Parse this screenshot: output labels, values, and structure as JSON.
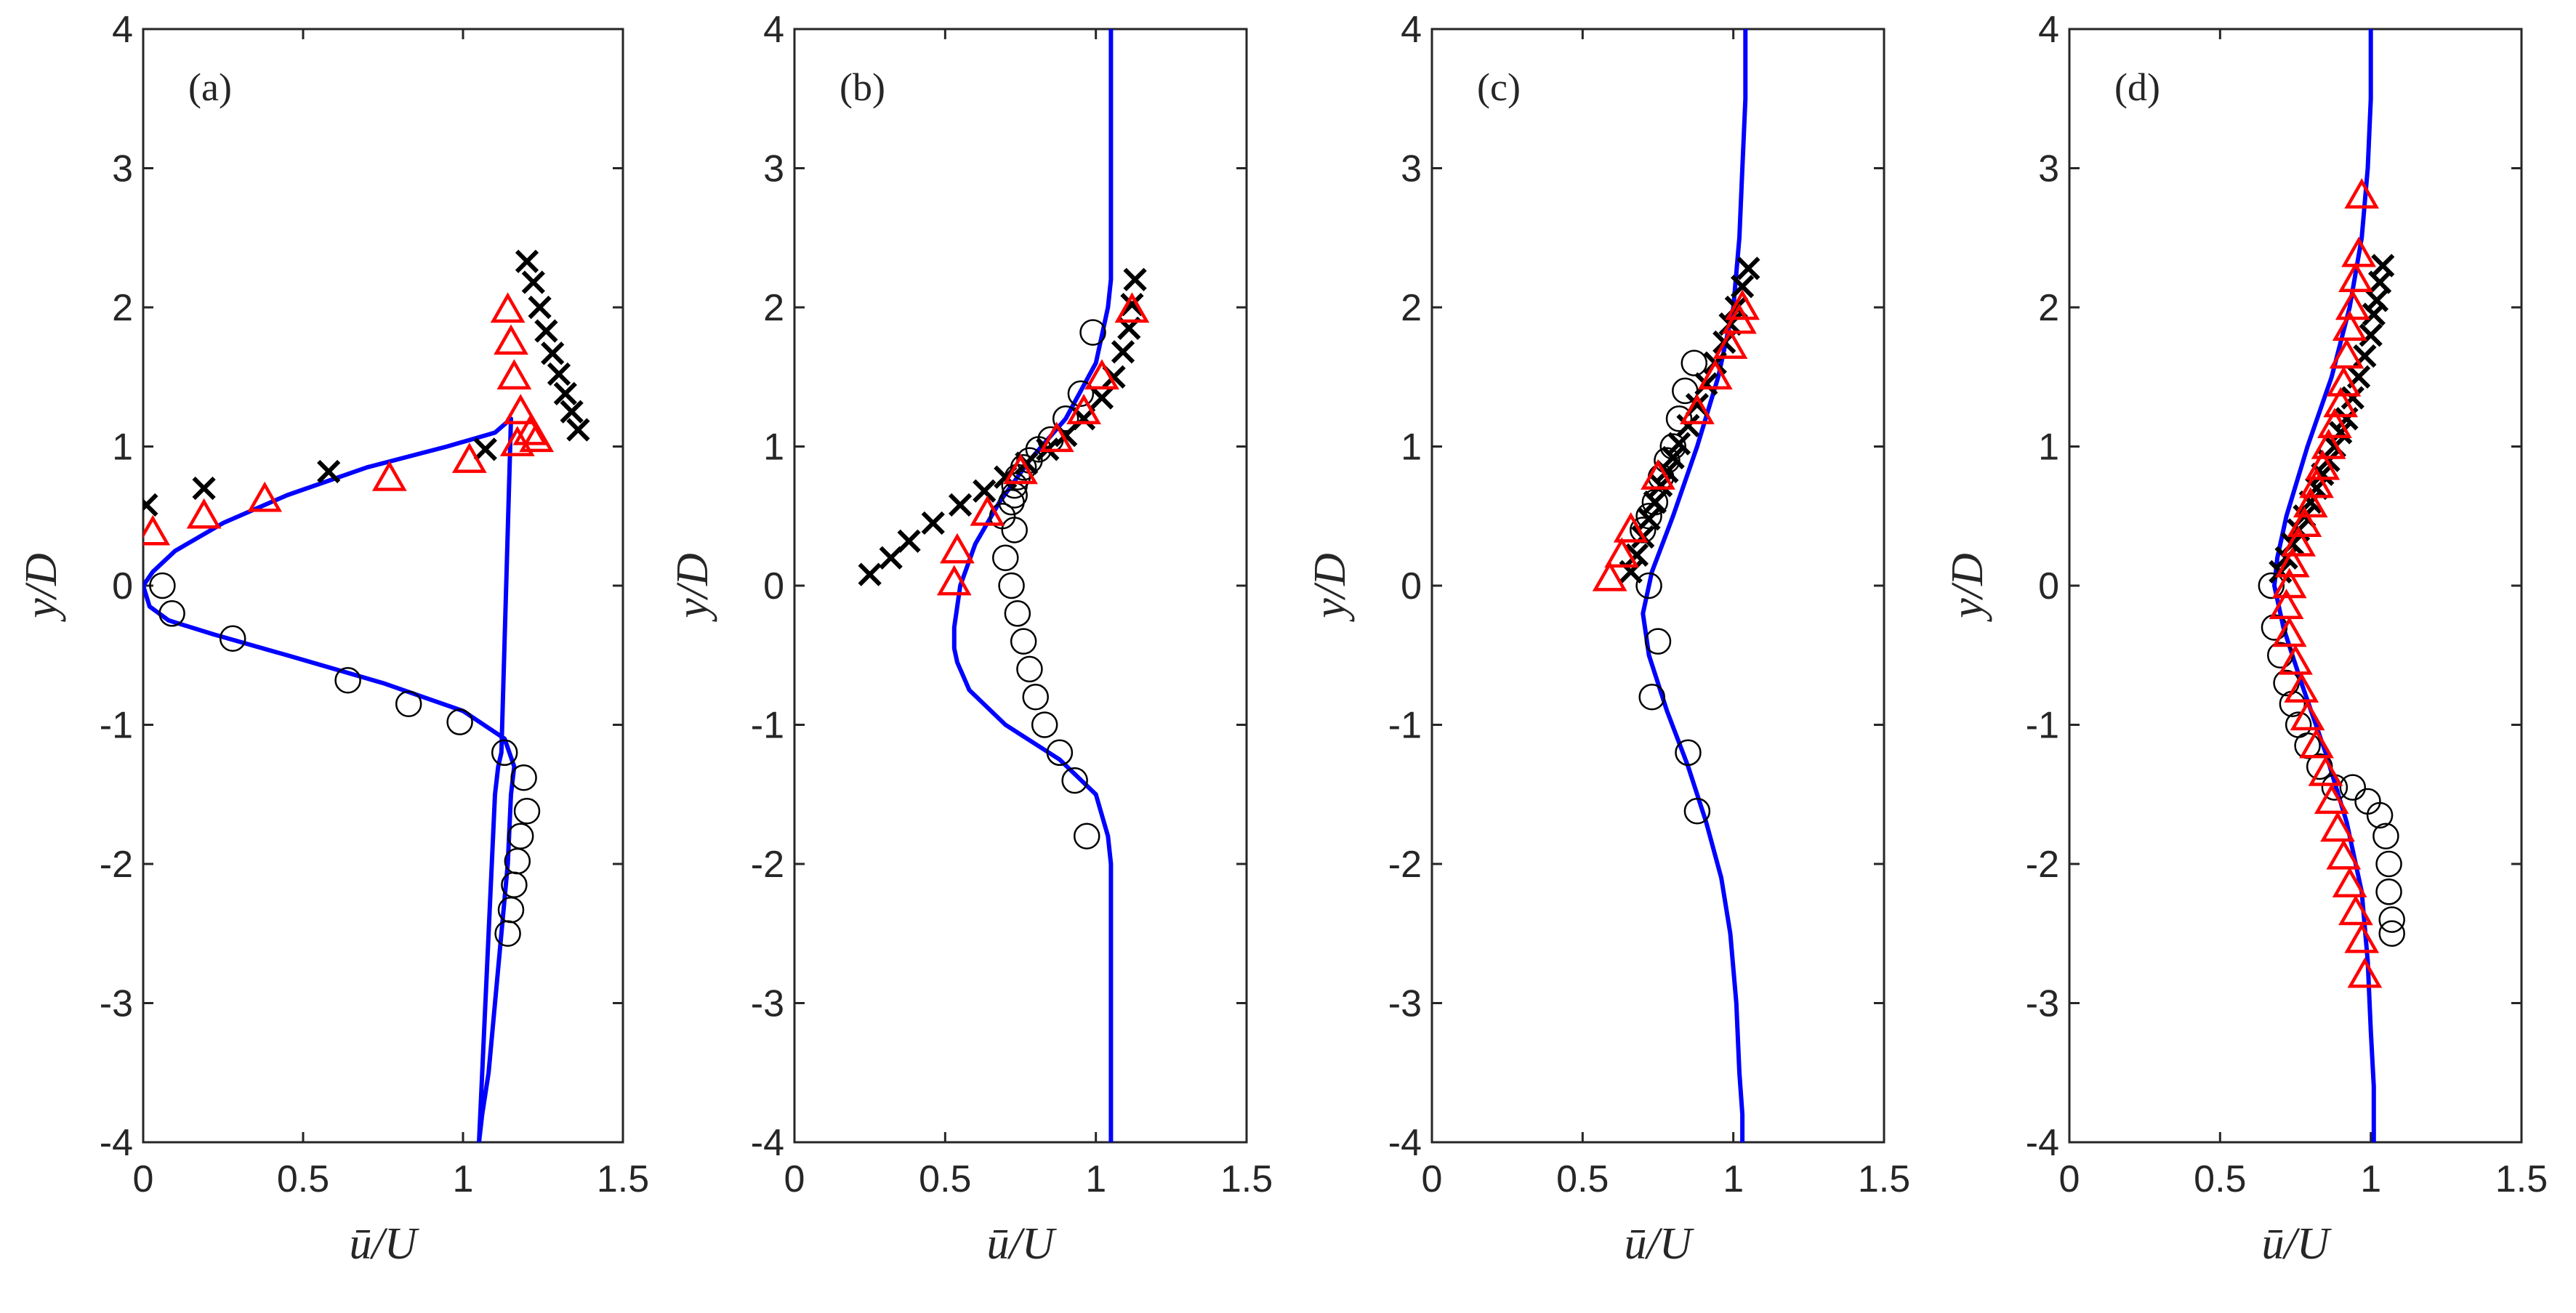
{
  "chart_data": [
    {
      "type": "line",
      "panel_label": "(a)",
      "xlabel": "ū/U",
      "ylabel": "y/D",
      "xlim": [
        0,
        1.5
      ],
      "ylim": [
        -4,
        4
      ],
      "x_ticks": [
        "0",
        "0.5",
        "1",
        "1.5"
      ],
      "y_ticks": [
        "-4",
        "-3",
        "-2",
        "-1",
        "0",
        "1",
        "2",
        "3",
        "4"
      ],
      "series": [
        {
          "name": "model",
          "kind": "line",
          "color": "#0000ff",
          "x": [
            1.05,
            1.06,
            1.07,
            1.08,
            1.09,
            1.1,
            1.11,
            1.12,
            1.15,
            1.1,
            0.95,
            0.7,
            0.45,
            0.25,
            0.1,
            0.03,
            0.0,
            0.02,
            0.08,
            0.22,
            0.45,
            0.75,
            1.0,
            1.13,
            1.16,
            1.15,
            1.14,
            1.12,
            1.1,
            1.08,
            1.06,
            1.05
          ],
          "y": [
            -4.0,
            -3.5,
            -3.0,
            -2.5,
            -2.0,
            -1.5,
            -1.3,
            -1.2,
            1.2,
            1.1,
            1.0,
            0.85,
            0.65,
            0.45,
            0.25,
            0.1,
            0.0,
            -0.15,
            -0.25,
            -0.35,
            -0.5,
            -0.7,
            -0.9,
            -1.1,
            -1.3,
            -1.5,
            -2.0,
            -2.5,
            -3.0,
            -3.5,
            -3.8,
            -4.0
          ]
        },
        {
          "name": "circles",
          "kind": "circle",
          "color": "#000000",
          "x": [
            0.06,
            0.09,
            0.28,
            0.64,
            0.83,
            0.99,
            1.13,
            1.19,
            1.2,
            1.18,
            1.17,
            1.16,
            1.15,
            1.14
          ],
          "y": [
            0.0,
            -0.2,
            -0.38,
            -0.68,
            -0.85,
            -0.98,
            -1.2,
            -1.38,
            -1.62,
            -1.8,
            -1.98,
            -2.15,
            -2.33,
            -2.5
          ]
        },
        {
          "name": "crosses",
          "kind": "cross",
          "color": "#000000",
          "x": [
            0.01,
            0.19,
            0.58,
            1.07,
            1.2,
            1.22,
            1.24,
            1.26,
            1.28,
            1.3,
            1.32,
            1.34,
            1.36
          ],
          "y": [
            0.58,
            0.7,
            0.82,
            0.98,
            2.33,
            2.18,
            2.0,
            1.83,
            1.67,
            1.52,
            1.38,
            1.25,
            1.12
          ]
        },
        {
          "name": "triangles",
          "kind": "triangle",
          "color": "#ff0000",
          "x": [
            0.03,
            0.19,
            0.38,
            0.77,
            1.02,
            1.14,
            1.15,
            1.16,
            1.18,
            1.21,
            1.23,
            1.17
          ],
          "y": [
            0.38,
            0.5,
            0.62,
            0.77,
            0.9,
            1.98,
            1.75,
            1.5,
            1.25,
            1.1,
            1.05,
            1.02
          ]
        }
      ]
    },
    {
      "type": "line",
      "panel_label": "(b)",
      "xlabel": "ū/U",
      "ylabel": "y/D",
      "xlim": [
        0,
        1.5
      ],
      "ylim": [
        -4,
        4
      ],
      "x_ticks": [
        "0",
        "0.5",
        "1",
        "1.5"
      ],
      "y_ticks": [
        "-4",
        "-3",
        "-2",
        "-1",
        "0",
        "1",
        "2",
        "3",
        "4"
      ],
      "series": [
        {
          "name": "model",
          "kind": "line",
          "color": "#0000ff",
          "x": [
            1.05,
            1.05,
            1.05,
            1.05,
            1.05,
            1.04,
            1.0,
            0.9,
            0.78,
            0.68,
            0.6,
            0.55,
            0.53,
            0.53,
            0.54,
            0.58,
            0.7,
            0.88,
            1.0,
            1.04,
            1.05,
            1.05,
            1.05,
            1.05,
            1.05
          ],
          "y": [
            4.0,
            3.5,
            3.0,
            2.5,
            2.2,
            2.0,
            1.6,
            1.2,
            0.9,
            0.6,
            0.3,
            0.0,
            -0.3,
            -0.45,
            -0.55,
            -0.75,
            -1.0,
            -1.25,
            -1.5,
            -1.8,
            -2.0,
            -2.5,
            -3.0,
            -3.5,
            -4.0
          ]
        },
        {
          "name": "circles",
          "kind": "circle",
          "color": "#000000",
          "x": [
            0.69,
            0.72,
            0.73,
            0.7,
            0.72,
            0.74,
            0.76,
            0.78,
            0.8,
            0.83,
            0.88,
            0.93,
            0.97,
            0.99,
            0.95,
            0.9,
            0.85,
            0.81,
            0.78,
            0.76,
            0.74,
            0.73,
            0.73
          ],
          "y": [
            0.5,
            0.6,
            0.4,
            0.2,
            0.0,
            -0.2,
            -0.4,
            -0.6,
            -0.8,
            -1.0,
            -1.2,
            -1.4,
            -1.8,
            1.82,
            1.38,
            1.2,
            1.05,
            0.98,
            0.9,
            0.85,
            0.78,
            0.72,
            0.65
          ]
        },
        {
          "name": "crosses",
          "kind": "cross",
          "color": "#000000",
          "x": [
            0.25,
            0.32,
            0.38,
            0.46,
            0.55,
            0.63,
            0.7,
            0.77,
            0.84,
            0.9,
            0.96,
            1.02,
            1.06,
            1.09,
            1.11,
            1.12,
            1.13
          ],
          "y": [
            0.08,
            0.2,
            0.32,
            0.45,
            0.58,
            0.68,
            0.78,
            0.88,
            0.98,
            1.08,
            1.2,
            1.35,
            1.5,
            1.68,
            1.85,
            2.02,
            2.2
          ]
        },
        {
          "name": "triangles",
          "kind": "triangle",
          "color": "#ff0000",
          "x": [
            0.53,
            0.54,
            0.64,
            0.75,
            0.87,
            0.96,
            1.02,
            1.12
          ],
          "y": [
            0.02,
            0.25,
            0.52,
            0.82,
            1.05,
            1.25,
            1.5,
            1.98
          ]
        }
      ]
    },
    {
      "type": "line",
      "panel_label": "(c)",
      "xlabel": "ū/U",
      "ylabel": "y/D",
      "xlim": [
        0,
        1.5
      ],
      "ylim": [
        -4,
        4
      ],
      "x_ticks": [
        "0",
        "0.5",
        "1",
        "1.5"
      ],
      "y_ticks": [
        "-4",
        "-3",
        "-2",
        "-1",
        "0",
        "1",
        "2",
        "3",
        "4"
      ],
      "series": [
        {
          "name": "model",
          "kind": "line",
          "color": "#0000ff",
          "x": [
            1.04,
            1.04,
            1.03,
            1.02,
            1.0,
            0.95,
            0.88,
            0.8,
            0.73,
            0.7,
            0.72,
            0.78,
            0.85,
            0.91,
            0.96,
            0.99,
            1.01,
            1.02,
            1.03,
            1.03
          ],
          "y": [
            4.0,
            3.5,
            3.0,
            2.5,
            2.0,
            1.5,
            1.0,
            0.5,
            0.1,
            -0.2,
            -0.5,
            -0.9,
            -1.3,
            -1.7,
            -2.1,
            -2.5,
            -3.0,
            -3.5,
            -3.8,
            -4.0
          ]
        },
        {
          "name": "circles",
          "kind": "circle",
          "color": "#000000",
          "x": [
            0.7,
            0.72,
            0.74,
            0.76,
            0.78,
            0.8,
            0.82,
            0.84,
            0.87,
            0.72,
            0.75,
            0.73,
            0.85,
            0.88
          ],
          "y": [
            0.4,
            0.5,
            0.6,
            0.78,
            0.9,
            1.0,
            1.2,
            1.4,
            1.6,
            0.0,
            -0.4,
            -0.8,
            -1.2,
            -1.62
          ]
        },
        {
          "name": "crosses",
          "kind": "cross",
          "color": "#000000",
          "x": [
            0.66,
            0.68,
            0.7,
            0.72,
            0.74,
            0.76,
            0.78,
            0.8,
            0.82,
            0.85,
            0.88,
            0.91,
            0.94,
            0.97,
            0.99,
            1.01,
            1.03,
            1.05
          ],
          "y": [
            0.1,
            0.22,
            0.35,
            0.48,
            0.6,
            0.72,
            0.82,
            0.92,
            1.02,
            1.15,
            1.3,
            1.45,
            1.6,
            1.75,
            1.88,
            2.0,
            2.15,
            2.28
          ]
        },
        {
          "name": "triangles",
          "kind": "triangle",
          "color": "#ff0000",
          "x": [
            0.59,
            0.63,
            0.66,
            0.75,
            0.88,
            0.94,
            0.99,
            1.02,
            1.03
          ],
          "y": [
            0.05,
            0.22,
            0.4,
            0.78,
            1.25,
            1.5,
            1.72,
            1.9,
            2.0
          ]
        }
      ]
    },
    {
      "type": "line",
      "panel_label": "(d)",
      "xlabel": "ū/U",
      "ylabel": "y/D",
      "xlim": [
        0,
        1.5
      ],
      "ylim": [
        -4,
        4
      ],
      "x_ticks": [
        "0",
        "0.5",
        "1",
        "1.5"
      ],
      "y_ticks": [
        "-4",
        "-3",
        "-2",
        "-1",
        "0",
        "1",
        "2",
        "3",
        "4"
      ],
      "series": [
        {
          "name": "model",
          "kind": "line",
          "color": "#0000ff",
          "x": [
            1.0,
            1.0,
            0.99,
            0.97,
            0.93,
            0.87,
            0.79,
            0.72,
            0.69,
            0.68,
            0.71,
            0.77,
            0.85,
            0.92,
            0.97,
            0.99,
            1.0,
            1.01,
            1.01
          ],
          "y": [
            4.0,
            3.5,
            3.0,
            2.5,
            2.0,
            1.5,
            1.0,
            0.5,
            0.2,
            0.0,
            -0.3,
            -0.7,
            -1.2,
            -1.7,
            -2.2,
            -2.7,
            -3.2,
            -3.6,
            -4.0
          ]
        },
        {
          "name": "circles",
          "kind": "circle",
          "color": "#000000",
          "x": [
            0.67,
            0.68,
            0.7,
            0.72,
            0.74,
            0.76,
            0.79,
            0.83,
            0.88,
            0.94,
            0.99,
            1.03,
            1.05,
            1.06,
            1.06,
            1.07,
            1.07
          ],
          "y": [
            0.0,
            -0.3,
            -0.5,
            -0.7,
            -0.85,
            -1.0,
            -1.15,
            -1.3,
            -1.45,
            -1.45,
            -1.55,
            -1.65,
            -1.8,
            -2.0,
            -2.2,
            -2.4,
            -2.5
          ]
        },
        {
          "name": "crosses",
          "kind": "cross",
          "color": "#000000",
          "x": [
            0.7,
            0.72,
            0.74,
            0.76,
            0.78,
            0.8,
            0.82,
            0.84,
            0.86,
            0.88,
            0.9,
            0.92,
            0.94,
            0.96,
            0.98,
            1.0,
            1.01,
            1.02,
            1.03,
            1.04
          ],
          "y": [
            0.1,
            0.2,
            0.3,
            0.4,
            0.5,
            0.6,
            0.7,
            0.8,
            0.9,
            1.0,
            1.1,
            1.2,
            1.35,
            1.5,
            1.65,
            1.8,
            1.95,
            2.05,
            2.18,
            2.3
          ]
        },
        {
          "name": "triangles",
          "kind": "triangle",
          "color": "#ff0000",
          "x": [
            0.97,
            0.96,
            0.95,
            0.94,
            0.93,
            0.92,
            0.91,
            0.9,
            0.88,
            0.86,
            0.84,
            0.82,
            0.8,
            0.78,
            0.76,
            0.74,
            0.73,
            0.72,
            0.73,
            0.75,
            0.77,
            0.79,
            0.82,
            0.85,
            0.87,
            0.89,
            0.91,
            0.93,
            0.95,
            0.97,
            0.98
          ],
          "y": [
            2.8,
            2.38,
            2.2,
            2.0,
            1.85,
            1.65,
            1.45,
            1.3,
            1.15,
            1.0,
            0.85,
            0.72,
            0.58,
            0.44,
            0.3,
            0.15,
            0.0,
            -0.15,
            -0.35,
            -0.55,
            -0.75,
            -0.95,
            -1.15,
            -1.35,
            -1.55,
            -1.75,
            -1.95,
            -2.15,
            -2.35,
            -2.55,
            -2.8
          ]
        }
      ]
    }
  ]
}
